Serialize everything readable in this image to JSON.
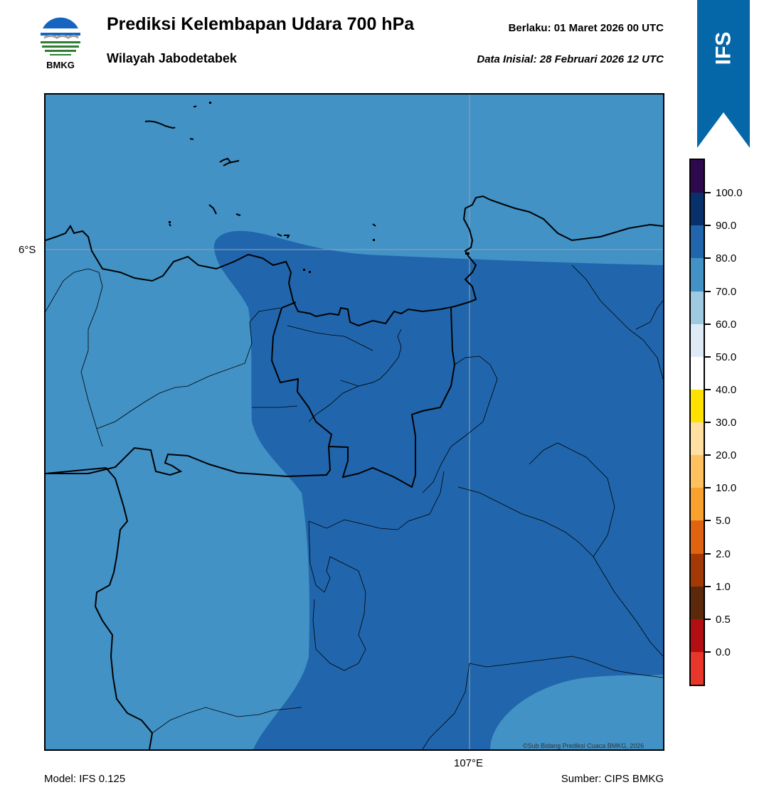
{
  "header": {
    "title": "Prediksi Kelembapan Udara 700 hPa",
    "subtitle": "Wilayah Jabodetabek",
    "valid_time": "Berlaku:  01 Maret 2026 00 UTC",
    "init_time": "Data Inisial:  28 Februari 2026 12 UTC",
    "logo_text": "BMKG",
    "badge_text": "IFS"
  },
  "map": {
    "lat_label": "6°S",
    "lon_label": "107°E",
    "credit": "©Sub Bidang Prediksi Cuaca BMKG, 2026",
    "fill_colors": {
      "light_band": "#4292c6",
      "dark_band": "#2166ac"
    }
  },
  "colorbar": {
    "labels": [
      "100.0",
      "90.0",
      "80.0",
      "70.0",
      "60.0",
      "50.0",
      "40.0",
      "30.0",
      "20.0",
      "10.0",
      "5.0",
      "2.0",
      "1.0",
      "0.5",
      "0.0"
    ],
    "colors": [
      "#2d0a4e",
      "#08306b",
      "#2166ac",
      "#4292c6",
      "#9ecae1",
      "#deebf7",
      "#ffffff",
      "#ffe100",
      "#ffe0a0",
      "#ffc060",
      "#f9a12e",
      "#e06410",
      "#a33a05",
      "#5c2a0a",
      "#b30f12",
      "#e8372a"
    ]
  },
  "footer": {
    "model": "Model: IFS 0.125",
    "source": "Sumber: CIPS BMKG"
  }
}
